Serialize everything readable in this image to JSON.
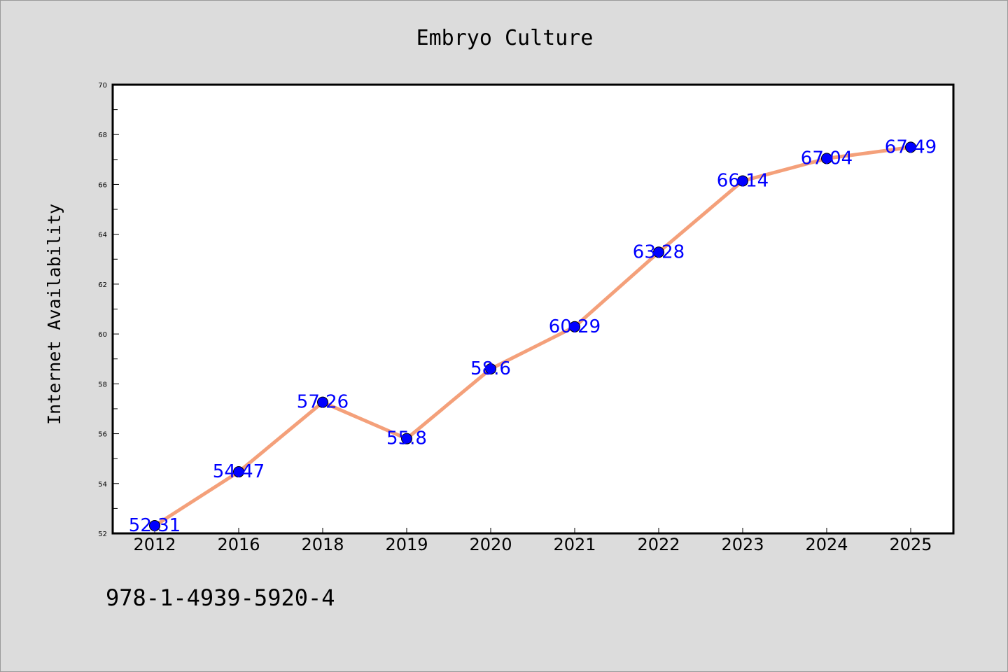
{
  "footer": {
    "isbn": "978-1-4939-5920-4"
  },
  "colors": {
    "background": "#dcdcdc",
    "plot_background": "#ffffff",
    "line": "#f4a07a",
    "marker": "#0000ff",
    "data_label": "#0000ff"
  },
  "chart_data": {
    "type": "line",
    "title": "Embryo Culture",
    "xlabel": "",
    "ylabel": "Internet Availability",
    "categories": [
      "2012",
      "2016",
      "2018",
      "2019",
      "2020",
      "2021",
      "2022",
      "2023",
      "2024",
      "2025"
    ],
    "series": [
      {
        "values": [
          52.31,
          54.47,
          57.26,
          55.8,
          58.6,
          60.29,
          63.28,
          66.14,
          67.04,
          67.49
        ],
        "labels": [
          "52.31",
          "54.47",
          "57.26",
          "55.8",
          "58.6",
          "60.29",
          "63.28",
          "66.14",
          "67.04",
          "67.49"
        ]
      }
    ],
    "ylim": [
      52,
      70
    ],
    "yticks": [
      52,
      54,
      56,
      58,
      60,
      62,
      64,
      66,
      68,
      70
    ],
    "ytick_labels": [
      "52",
      "54",
      "56",
      "58",
      "60",
      "62",
      "64",
      "66",
      "68",
      "70"
    ],
    "grid": false,
    "legend": "none"
  }
}
